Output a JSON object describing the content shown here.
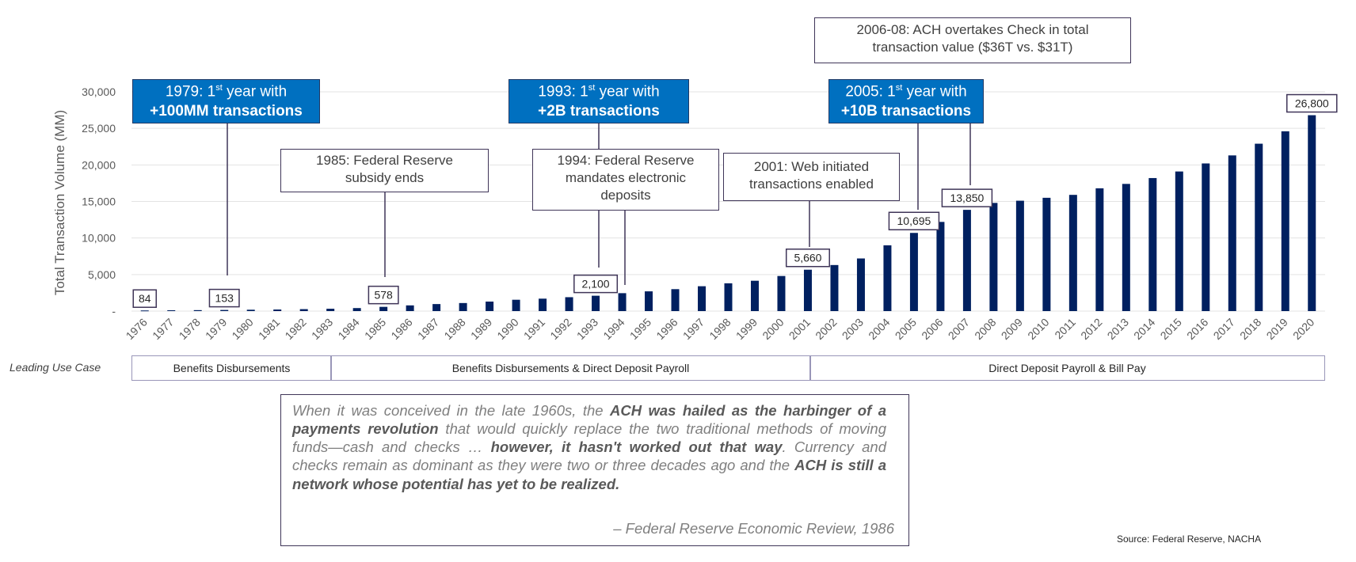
{
  "chart_data": {
    "type": "bar",
    "ylabel": "Total Transaction Volume (MM)",
    "ylim": [
      0,
      30000
    ],
    "yticks": [
      0,
      5000,
      10000,
      15000,
      20000,
      25000,
      30000
    ],
    "ytick_labels": [
      "-",
      "5,000",
      "10,000",
      "15,000",
      "20,000",
      "25,000",
      "30,000"
    ],
    "bar_color": "#002060",
    "categories": [
      "1976",
      "1977",
      "1978",
      "1979",
      "1980",
      "1981",
      "1982",
      "1983",
      "1984",
      "1985",
      "1986",
      "1987",
      "1988",
      "1989",
      "1990",
      "1991",
      "1992",
      "1993",
      "1994",
      "1995",
      "1996",
      "1997",
      "1998",
      "1999",
      "2000",
      "2001",
      "2002",
      "2003",
      "2004",
      "2005",
      "2006",
      "2007",
      "2008",
      "2009",
      "2010",
      "2011",
      "2012",
      "2013",
      "2014",
      "2015",
      "2016",
      "2017",
      "2018",
      "2019",
      "2020"
    ],
    "values": [
      84,
      110,
      128,
      153,
      185,
      215,
      265,
      320,
      410,
      578,
      780,
      960,
      1100,
      1300,
      1550,
      1700,
      1900,
      2100,
      2450,
      2700,
      3000,
      3400,
      3800,
      4150,
      4800,
      5660,
      6300,
      7200,
      9000,
      10695,
      12200,
      13850,
      14800,
      15100,
      15500,
      15900,
      16800,
      17400,
      18200,
      19100,
      20200,
      21300,
      22900,
      24600,
      26800
    ],
    "data_labels": [
      {
        "year": "1976",
        "text": "84"
      },
      {
        "year": "1979",
        "text": "153"
      },
      {
        "year": "1985",
        "text": "578"
      },
      {
        "year": "1993",
        "text": "2,100"
      },
      {
        "year": "2001",
        "text": "5,660"
      },
      {
        "year": "2005",
        "text": "10,695"
      },
      {
        "year": "2007",
        "text": "13,850"
      },
      {
        "year": "2020",
        "text": "26,800"
      }
    ],
    "grid": true
  },
  "callouts": {
    "c1979": {
      "year_prefix": "1979: 1",
      "sup": "st",
      "suffix": " year with",
      "bold": "+100MM transactions"
    },
    "c1993": {
      "year_prefix": "1993: 1",
      "sup": "st",
      "suffix": " year with",
      "bold": "+2B transactions"
    },
    "c2005": {
      "year_prefix": "2005: 1",
      "sup": "st",
      "suffix": " year with",
      "bold": "+10B transactions"
    },
    "c1985": {
      "line1": "1985: Federal Reserve",
      "line2": "subsidy ends"
    },
    "c1994": {
      "line1": "1994: Federal Reserve",
      "line2": "mandates electronic",
      "line3": "deposits"
    },
    "c2001": {
      "line1": "2001: Web initiated",
      "line2": "transactions enabled"
    },
    "c2006": {
      "line1": "2006-08: ACH overtakes Check in total",
      "line2": "transaction value ($36T vs. $31T)"
    }
  },
  "use_case": {
    "label": "Leading Use Case",
    "segments": [
      "Benefits Disbursements",
      "Benefits Disbursements & Direct Deposit Payroll",
      "Direct Deposit Payroll & Bill Pay"
    ]
  },
  "quote": {
    "p1": "When it was conceived in the late 1960s, the ",
    "b1": "ACH was hailed as the harbinger of a payments revolution",
    "p2": " that would quickly replace the two traditional methods of moving funds—cash and checks … ",
    "b2": "however, it hasn't worked out that way",
    "p3": ". Currency and checks remain as dominant as they were two or three decades ago and the ",
    "b3": "ACH is still a network whose potential has yet to be realized.",
    "attribution": "– Federal Reserve Economic Review, 1986"
  },
  "source": "Source: Federal Reserve, NACHA"
}
